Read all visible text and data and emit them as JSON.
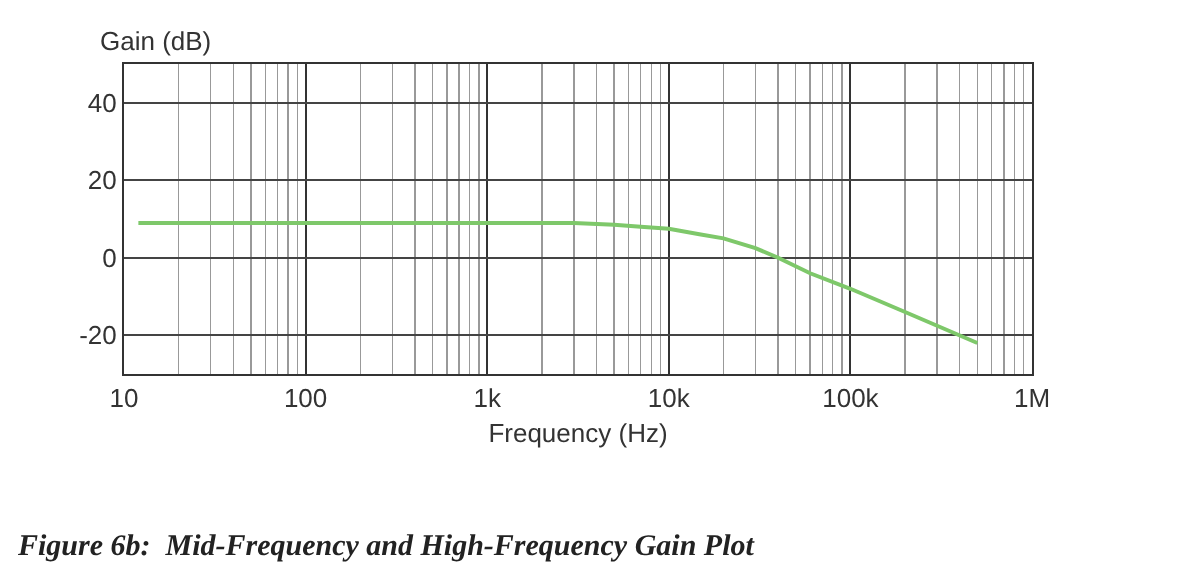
{
  "chart_data": {
    "type": "line",
    "title": "Figure 6b:  Mid-Frequency and High-Frequency Gain Plot",
    "xlabel": "Frequency (Hz)",
    "ylabel": "Gain (dB)",
    "log": "x",
    "x": [
      12,
      100,
      1000,
      3000,
      5000,
      7000,
      10000,
      15000,
      20000,
      30000,
      40000,
      60000,
      100000,
      200000,
      500000
    ],
    "series": [
      {
        "color": "#7ec86a",
        "values": [
          9,
          9,
          9,
          9,
          8.5,
          8,
          7.5,
          6,
          5,
          2.5,
          0,
          -4,
          -8,
          -14,
          -22
        ]
      }
    ],
    "xlim": [
      10,
      1000000
    ],
    "xticks": [
      10,
      100,
      {
        "value": 1000,
        "label": "1k"
      },
      {
        "value": 10000,
        "label": "10k"
      },
      {
        "value": 100000,
        "label": "100k"
      },
      {
        "value": 1000000,
        "label": "1M"
      }
    ],
    "ylim": [
      -30,
      50
    ],
    "yticks": [
      -20,
      0,
      20,
      40
    ],
    "grid": true,
    "line_style": "solid",
    "marker": "none"
  }
}
